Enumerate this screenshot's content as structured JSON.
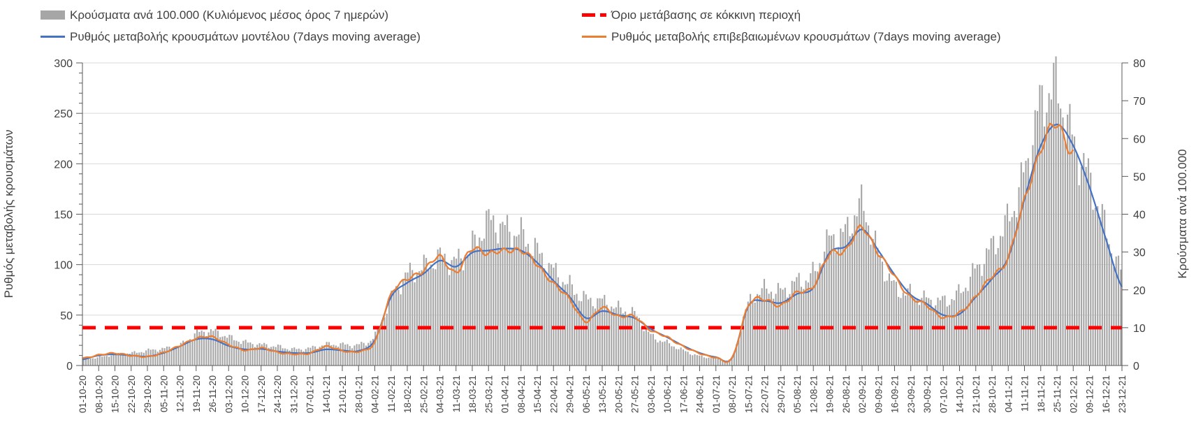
{
  "legend": {
    "items": [
      {
        "label": "Κρούσματα ανά 100.000 (Κυλιόμενος μέσος όρος 7 ημερών)",
        "type": "bar",
        "color": "#a6a6a6"
      },
      {
        "label": "Όριο μετάβασης σε κόκκινη περιοχή",
        "type": "dashed-line",
        "color": "#ff0000"
      },
      {
        "label": "Ρυθμός μεταβολής κρουσμάτων μοντέλου (7days moving average)",
        "type": "line",
        "color": "#4472c4"
      },
      {
        "label": "Ρυθμός μεταβολής επιβεβαιωμένων κρουσμάτων (7days moving average)",
        "type": "line",
        "color": "#ed7d31"
      }
    ]
  },
  "chart_data": {
    "type": "combo",
    "subtype": "daily bars with two smoothed lines and a horizontal threshold",
    "grid": true,
    "legend_position": "top",
    "x_labels": [
      "01-10-20",
      "08-10-20",
      "15-10-20",
      "22-10-20",
      "29-10-20",
      "05-11-20",
      "12-11-20",
      "19-11-20",
      "26-11-20",
      "03-12-20",
      "10-12-20",
      "17-12-20",
      "24-12-20",
      "31-12-20",
      "07-01-21",
      "14-01-21",
      "21-01-21",
      "28-01-21",
      "04-02-21",
      "11-02-21",
      "18-02-21",
      "25-02-21",
      "04-03-21",
      "11-03-21",
      "18-03-21",
      "25-03-21",
      "01-04-21",
      "08-04-21",
      "15-04-21",
      "22-04-21",
      "29-04-21",
      "06-05-21",
      "13-05-21",
      "20-05-21",
      "27-05-21",
      "03-06-21",
      "10-06-21",
      "17-06-21",
      "24-06-21",
      "01-07-21",
      "08-07-21",
      "15-07-21",
      "22-07-21",
      "29-07-21",
      "05-08-21",
      "12-08-21",
      "19-08-21",
      "26-08-21",
      "02-09-21",
      "09-09-21",
      "16-09-21",
      "23-09-21",
      "30-09-21",
      "07-10-21",
      "14-10-21",
      "21-10-21",
      "28-10-21",
      "04-11-21",
      "11-11-21",
      "18-11-21",
      "25-11-21",
      "02-12-21",
      "09-12-21",
      "16-12-21",
      "23-12-21"
    ],
    "left_axis": {
      "label": "Ρυθμός μεταβολής κρουσμάτων",
      "min": 0,
      "max": 300,
      "step": 50,
      "minor_step": 10
    },
    "right_axis": {
      "label": "Κρούσματα ανά 100.000",
      "min": 0,
      "max": 80,
      "step": 10
    },
    "threshold": {
      "label": "Όριο μετάβασης σε κόκκινη περιοχή",
      "axis": "right",
      "value": 10,
      "color": "#ff0000",
      "style": "dashed"
    },
    "series": [
      {
        "name": "Κρούσματα ανά 100.000 (Κυλιόμενος μέσος όρος 7 ημερών)",
        "type": "bar",
        "axis": "right",
        "color": "#a6a6a6",
        "values": [
          1.8,
          2.2,
          3,
          3.3,
          4,
          4.5,
          5.5,
          8.5,
          9,
          7.4,
          6.1,
          5.5,
          5,
          4.3,
          4.6,
          5.6,
          5.5,
          5.5,
          8,
          18,
          24,
          26,
          28.5,
          27.5,
          31.5,
          38,
          36,
          34.5,
          30,
          25,
          21,
          17.5,
          17,
          15,
          13.5,
          8,
          6,
          4,
          2.5,
          2,
          2.2,
          16,
          20,
          19.5,
          22,
          24,
          33,
          35,
          42,
          30,
          21,
          19,
          17.5,
          17,
          19,
          25,
          31,
          38,
          50,
          68,
          73,
          60,
          50,
          37,
          25
        ]
      },
      {
        "name": "Ρυθμός μεταβολής κρουσμάτων μοντέλου (7days moving average)",
        "type": "line",
        "axis": "left",
        "color": "#4472c4",
        "values": [
          6,
          10,
          11,
          10,
          9,
          12.5,
          19,
          26,
          26,
          19.5,
          16,
          16.5,
          14,
          12.5,
          12.5,
          16,
          15,
          14.5,
          25,
          68,
          82,
          91,
          104,
          98,
          112,
          114,
          116,
          114,
          102,
          84,
          68,
          47,
          54,
          50,
          47,
          36,
          28,
          19.5,
          12.5,
          8.3,
          7.6,
          59,
          64,
          62,
          71,
          77,
          112,
          118,
          135,
          114,
          90,
          70,
          61,
          50,
          51,
          68,
          86,
          107,
          165,
          218,
          239,
          218,
          177,
          126,
          78
        ]
      },
      {
        "name": "Ρυθμός μεταβολής επιβεβαιωμένων κρουσμάτων (7days moving average)",
        "type": "line",
        "axis": "left",
        "color": "#ed7d31",
        "values": [
          7,
          10.5,
          12,
          10,
          8.7,
          13,
          19.5,
          27,
          28,
          21,
          15,
          17.5,
          13,
          11.5,
          12,
          19,
          14.5,
          14,
          23,
          71,
          85,
          95,
          107,
          93,
          115,
          112,
          113,
          115,
          99,
          82,
          65,
          44,
          57,
          49,
          48,
          35,
          28,
          19,
          12,
          8,
          7.5,
          60,
          65,
          60,
          72,
          79,
          110,
          115,
          136,
          112,
          88,
          68,
          59,
          48,
          52,
          69,
          88,
          108,
          163,
          215,
          238,
          212,
          null,
          null,
          null
        ]
      }
    ]
  }
}
